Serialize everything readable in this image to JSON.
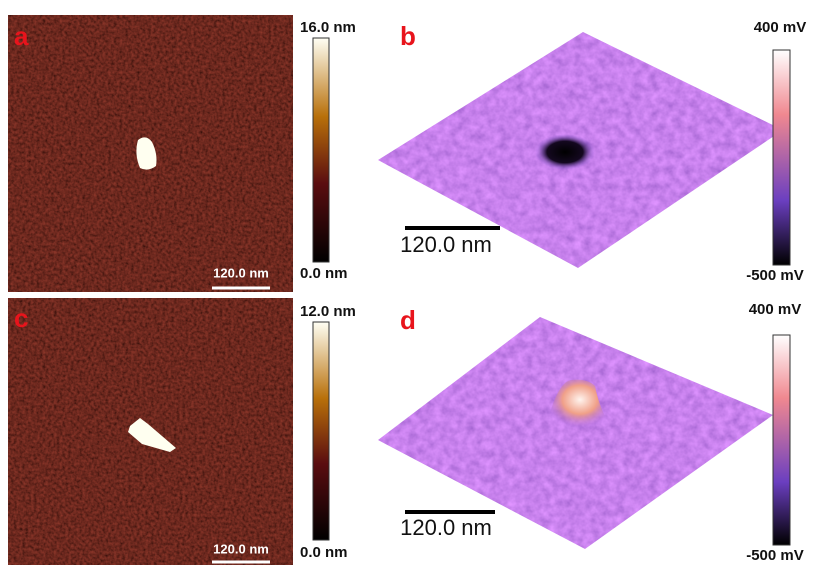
{
  "panels": [
    {
      "label": "a",
      "colorbar": {
        "max": "16.0 nm",
        "min": "0.0 nm"
      },
      "scale_bar": "120.0 nm"
    },
    {
      "label": "b",
      "colorbar": {
        "max": "400 mV",
        "min": "-500 mV"
      },
      "scale_bar": "120.0 nm"
    },
    {
      "label": "c",
      "colorbar": {
        "max": "12.0 nm",
        "min": "0.0 nm"
      },
      "scale_bar": "120.0 nm"
    },
    {
      "label": "d",
      "colorbar": {
        "max": "400 mV",
        "min": "-500 mV"
      },
      "scale_bar": "120.0 nm"
    }
  ]
}
